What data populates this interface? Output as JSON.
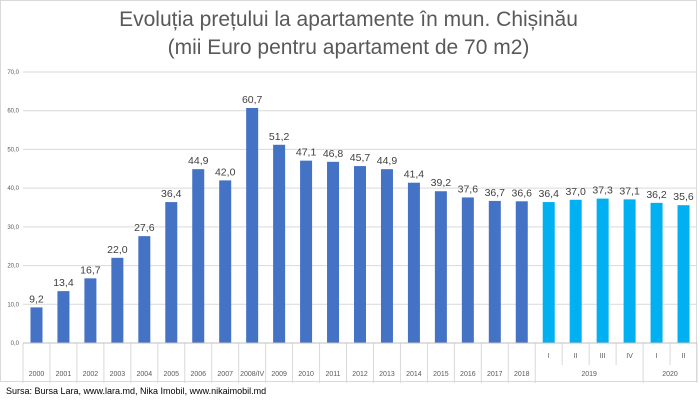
{
  "chart_data": {
    "type": "bar",
    "title": "Evoluția prețului la apartamente în mun. Chișinău",
    "subtitle": "(mii Euro pentru apartament de 70 m2)",
    "categories": [
      "2000",
      "2001",
      "2002",
      "2003",
      "2004",
      "2005",
      "2006",
      "2007",
      "2008/IV",
      "2009",
      "2010",
      "2011",
      "2012",
      "2013",
      "2014",
      "2015",
      "2016",
      "2017",
      "2018",
      "I",
      "II",
      "III",
      "IV",
      "I",
      "II"
    ],
    "category_groups": [
      {
        "label": "2019",
        "start": 19,
        "end": 22
      },
      {
        "label": "2020",
        "start": 23,
        "end": 24
      }
    ],
    "values": [
      9.2,
      13.4,
      16.7,
      22.0,
      27.6,
      36.4,
      44.9,
      42.0,
      60.7,
      51.2,
      47.1,
      46.8,
      45.7,
      44.9,
      41.4,
      39.2,
      37.6,
      36.7,
      36.6,
      36.4,
      37.0,
      37.3,
      37.1,
      36.2,
      35.6
    ],
    "data_labels": [
      "9,2",
      "13,4",
      "16,7",
      "22,0",
      "27,6",
      "36,4",
      "44,9",
      "42,0",
      "60,7",
      "51,2",
      "47,1",
      "46,8",
      "45,7",
      "44,9",
      "41,4",
      "39,2",
      "37,6",
      "36,7",
      "36,6",
      "36,4",
      "37,0",
      "37,3",
      "37,1",
      "36,2",
      "35,6"
    ],
    "yticks": [
      "0,0",
      "10,0",
      "20,0",
      "30,0",
      "40,0",
      "50,0",
      "60,0",
      "70,0"
    ],
    "ylim": [
      0,
      70
    ],
    "grid": true,
    "colors": {
      "annual": "#4472C4",
      "quarterly": "#00B0F0"
    },
    "xlabel": "",
    "ylabel": ""
  },
  "source": "Sursa: Bursa Lara, www.lara.md, Nika Imobil, www.nikaimobil.md"
}
